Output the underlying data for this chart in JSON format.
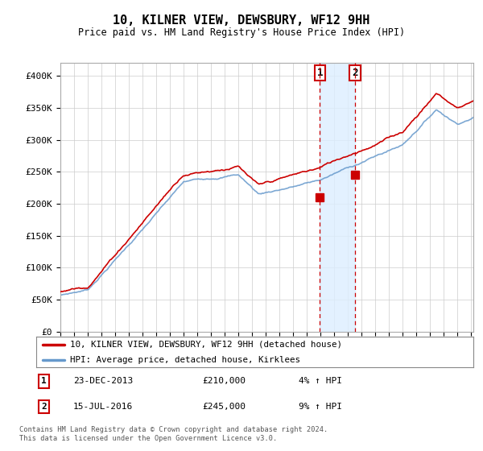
{
  "title": "10, KILNER VIEW, DEWSBURY, WF12 9HH",
  "subtitle": "Price paid vs. HM Land Registry's House Price Index (HPI)",
  "ylim": [
    0,
    420000
  ],
  "yticks": [
    0,
    50000,
    100000,
    150000,
    200000,
    250000,
    300000,
    350000,
    400000
  ],
  "ytick_labels": [
    "£0",
    "£50K",
    "£100K",
    "£150K",
    "£200K",
    "£250K",
    "£300K",
    "£350K",
    "£400K"
  ],
  "background_color": "#ffffff",
  "grid_color": "#cccccc",
  "line1_color": "#cc0000",
  "line2_color": "#6699cc",
  "shade_color": "#ddeeff",
  "transaction1_date": 2013.98,
  "transaction1_price": 210000,
  "transaction2_date": 2016.54,
  "transaction2_price": 245000,
  "legend_label1": "10, KILNER VIEW, DEWSBURY, WF12 9HH (detached house)",
  "legend_label2": "HPI: Average price, detached house, Kirklees",
  "footnote": "Contains HM Land Registry data © Crown copyright and database right 2024.\nThis data is licensed under the Open Government Licence v3.0.",
  "xmin": 1995,
  "xmax": 2025.2
}
